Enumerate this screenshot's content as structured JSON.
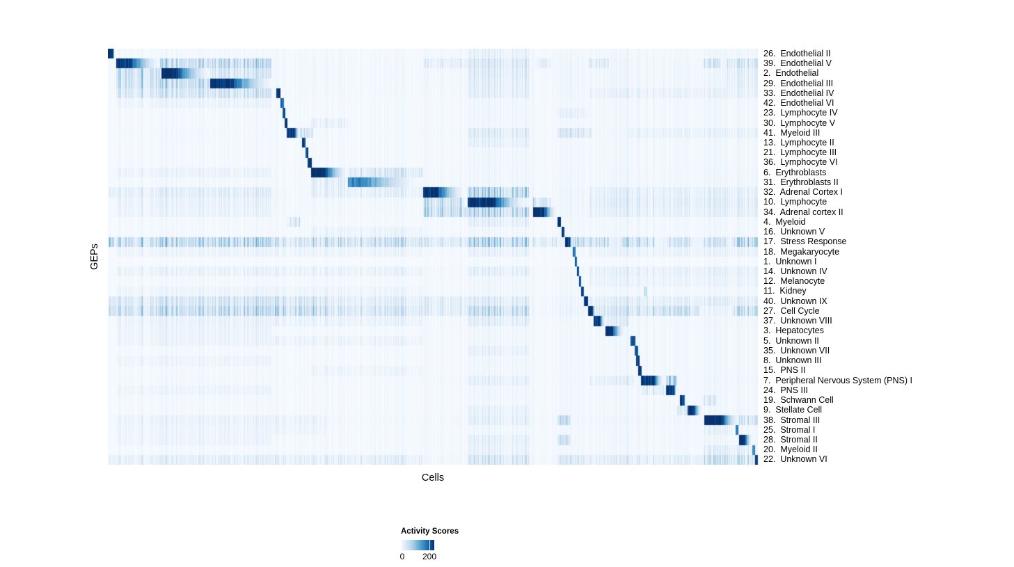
{
  "chart_data": {
    "type": "heatmap",
    "title": "",
    "xlabel": "Cells",
    "ylabel": "GEPs",
    "grid": false,
    "legend_position": "bottom-left-of-center",
    "colorbar": {
      "title": "Activity Scores",
      "tick_labels": [
        "0",
        "200"
      ],
      "tick_positions": [
        0.0,
        0.845
      ],
      "colormap": "Blues",
      "stops": [
        [
          0.0,
          "#f7fbff"
        ],
        [
          0.13,
          "#deebf7"
        ],
        [
          0.26,
          "#c6dbef"
        ],
        [
          0.39,
          "#9ecae1"
        ],
        [
          0.52,
          "#6baed6"
        ],
        [
          0.65,
          "#4292c6"
        ],
        [
          0.78,
          "#2171b5"
        ],
        [
          0.9,
          "#08519c"
        ],
        [
          1.0,
          "#08306b"
        ]
      ]
    },
    "value_scale": {
      "intensity_0": 0,
      "intensity_1": 200,
      "unit": "activity score"
    },
    "background_bands": [
      [
        0.0,
        0.014,
        0.02
      ],
      [
        0.014,
        0.155,
        0.035
      ],
      [
        0.155,
        0.257,
        0.03
      ],
      [
        0.257,
        0.311,
        0.025
      ],
      [
        0.311,
        0.369,
        0.03
      ],
      [
        0.369,
        0.4845,
        0.025
      ],
      [
        0.4845,
        0.553,
        0.03
      ],
      [
        0.553,
        0.647,
        0.045
      ],
      [
        0.647,
        0.69,
        0.03
      ],
      [
        0.69,
        0.74,
        0.035
      ],
      [
        0.74,
        0.84,
        0.04
      ],
      [
        0.84,
        0.915,
        0.035
      ],
      [
        0.915,
        1.0,
        0.045
      ]
    ],
    "rows": [
      {
        "label": "26.  Endothelial II",
        "bg": 1.0,
        "main": [
          0.0,
          0.0096,
          1.0,
          0.8
        ],
        "extras": [
          [
            0.553,
            0.647,
            0.05
          ]
        ]
      },
      {
        "label": "39.  Endothelial V",
        "bg": 1.2,
        "main": [
          0.0128,
          0.0802,
          1.0,
          0.3
        ],
        "extras": [
          [
            0.0802,
            0.2513,
            0.28
          ],
          [
            0.4845,
            0.553,
            0.08
          ],
          [
            0.553,
            0.647,
            0.12
          ],
          [
            0.6578,
            0.6813,
            0.15
          ],
          [
            0.738,
            0.7701,
            0.12
          ],
          [
            0.9144,
            0.9412,
            0.15
          ],
          [
            0.9518,
            1.0,
            0.17
          ]
        ]
      },
      {
        "label": "2.  Endothelial",
        "bg": 1.2,
        "main": [
          0.0824,
          0.1572,
          1.0,
          0.28
        ],
        "extras": [
          [
            0.0128,
            0.0802,
            0.3
          ],
          [
            0.1572,
            0.2513,
            0.17
          ],
          [
            0.553,
            0.647,
            0.09
          ],
          [
            0.9518,
            1.0,
            0.08
          ]
        ]
      },
      {
        "label": "29.  Endothelial III",
        "bg": 1.2,
        "main": [
          0.1572,
          0.2545,
          1.0,
          0.3
        ],
        "extras": [
          [
            0.0128,
            0.1572,
            0.28
          ],
          [
            0.553,
            0.647,
            0.07
          ],
          [
            0.9518,
            1.0,
            0.07
          ]
        ]
      },
      {
        "label": "33.  Endothelial IV",
        "bg": 1.1,
        "main": [
          0.2588,
          0.2652,
          1.0,
          1.0
        ],
        "extras": [
          [
            0.0128,
            0.2513,
            0.2
          ],
          [
            0.553,
            0.647,
            0.07
          ],
          [
            0.74,
            1.0,
            0.05
          ]
        ]
      },
      {
        "label": "42.  Endothelial VI",
        "bg": 0.9,
        "main": [
          0.2652,
          0.2701,
          0.85,
          1.0
        ],
        "extras": [
          [
            0.0128,
            0.2513,
            0.05
          ]
        ]
      },
      {
        "label": "23.  Lymphocyte IV",
        "bg": 0.9,
        "main": [
          0.2684,
          0.2727,
          0.95,
          1.0
        ],
        "extras": [
          [
            0.69,
            0.74,
            0.05
          ]
        ]
      },
      {
        "label": "30.  Lymphocyte V",
        "bg": 0.9,
        "main": [
          0.2717,
          0.2759,
          1.0,
          1.0
        ],
        "extras": [
          [
            0.3123,
            0.369,
            0.07
          ]
        ]
      },
      {
        "label": "41.  Myeloid III",
        "bg": 1.0,
        "main": [
          0.2749,
          0.2952,
          1.0,
          0.55
        ],
        "extras": [
          [
            0.2952,
            0.3155,
            0.22
          ],
          [
            0.553,
            0.647,
            0.1
          ],
          [
            0.69,
            0.7433,
            0.13
          ],
          [
            0.8,
            1.0,
            0.05
          ]
        ]
      },
      {
        "label": "13.  Lymphocyte II",
        "bg": 0.9,
        "main": [
          0.2984,
          0.3032,
          0.95,
          1.0
        ],
        "extras": [
          [
            0.553,
            0.647,
            0.06
          ]
        ]
      },
      {
        "label": "21.  Lymphocyte III",
        "bg": 0.9,
        "main": [
          0.3037,
          0.308,
          0.9,
          1.0
        ],
        "extras": []
      },
      {
        "label": "36.  Lymphocyte VI",
        "bg": 0.9,
        "main": [
          0.307,
          0.3134,
          1.0,
          0.9
        ],
        "extras": []
      },
      {
        "label": "6.  Erythroblasts",
        "bg": 1.0,
        "main": [
          0.3123,
          0.3701,
          1.0,
          0.33
        ],
        "extras": [
          [
            0.3701,
            0.4845,
            0.16
          ],
          [
            0.0128,
            0.2513,
            0.05
          ]
        ]
      },
      {
        "label": "31.  Erythroblasts II",
        "bg": 1.0,
        "main": [
          0.369,
          0.4824,
          0.68,
          0.22
        ],
        "extras": [
          [
            0.3123,
            0.369,
            0.1
          ]
        ]
      },
      {
        "label": "32.  Adrenal Cortex I",
        "bg": 1.3,
        "main": [
          0.4845,
          0.5476,
          1.0,
          0.33
        ],
        "extras": [
          [
            0.553,
            0.647,
            0.28
          ],
          [
            0.0,
            0.2513,
            0.1
          ],
          [
            0.3123,
            0.4845,
            0.08
          ],
          [
            0.74,
            1.0,
            0.06
          ]
        ]
      },
      {
        "label": "10.  Lymphocyte",
        "bg": 1.3,
        "main": [
          0.553,
          0.6428,
          1.0,
          0.42
        ],
        "extras": [
          [
            0.4845,
            0.5476,
            0.22
          ],
          [
            0.6535,
            0.6813,
            0.25
          ],
          [
            0.0128,
            0.2513,
            0.06
          ],
          [
            0.74,
            1.0,
            0.08
          ]
        ]
      },
      {
        "label": "34.  Adrenal cortex II",
        "bg": 1.2,
        "main": [
          0.6535,
          0.6898,
          1.0,
          0.45
        ],
        "extras": [
          [
            0.4845,
            0.647,
            0.26
          ],
          [
            0.0128,
            0.2513,
            0.05
          ],
          [
            0.74,
            1.0,
            0.06
          ]
        ]
      },
      {
        "label": "4.  Myeloid",
        "bg": 0.9,
        "main": [
          0.6909,
          0.6968,
          0.95,
          1.0
        ],
        "extras": [
          [
            0.2749,
            0.2952,
            0.2
          ],
          [
            0.553,
            0.647,
            0.07
          ]
        ]
      },
      {
        "label": "16.  Unknown V",
        "bg": 0.9,
        "main": [
          0.6979,
          0.7021,
          0.9,
          1.0
        ],
        "extras": [
          [
            0.3123,
            0.4845,
            0.05
          ]
        ]
      },
      {
        "label": "17.  Stress Response",
        "bg": 2.2,
        "main": [
          0.7027,
          0.7134,
          0.95,
          0.7
        ],
        "extras": [
          [
            0.0,
            0.0096,
            0.45
          ],
          [
            0.0128,
            0.2513,
            0.28
          ],
          [
            0.2513,
            0.3112,
            0.16
          ],
          [
            0.3123,
            0.4845,
            0.2
          ],
          [
            0.4845,
            0.553,
            0.1
          ],
          [
            0.553,
            0.647,
            0.24
          ],
          [
            0.6535,
            0.6898,
            0.12
          ],
          [
            0.7134,
            0.77,
            0.2
          ],
          [
            0.79,
            0.84,
            0.16
          ],
          [
            0.86,
            0.9,
            0.14
          ],
          [
            0.9144,
            0.95,
            0.12
          ],
          [
            0.96,
            1.0,
            0.26
          ]
        ]
      },
      {
        "label": "18.  Megakaryocyte",
        "bg": 0.8,
        "main": [
          0.7144,
          0.7187,
          0.8,
          1.0
        ],
        "extras": [
          [
            0.0128,
            0.4845,
            0.05
          ],
          [
            0.553,
            0.647,
            0.06
          ],
          [
            0.74,
            1.0,
            0.05
          ]
        ]
      },
      {
        "label": "1.  Unknown I",
        "bg": 0.5,
        "main": [
          0.7182,
          0.7209,
          0.85,
          1.0
        ],
        "extras": []
      },
      {
        "label": "14.  Unknown IV",
        "bg": 1.0,
        "main": [
          0.7209,
          0.7241,
          0.9,
          1.0
        ],
        "extras": [
          [
            0.0128,
            0.4845,
            0.06
          ],
          [
            0.553,
            0.647,
            0.07
          ],
          [
            0.74,
            1.0,
            0.06
          ]
        ]
      },
      {
        "label": "12.  Melanocyte",
        "bg": 0.9,
        "main": [
          0.7241,
          0.7278,
          0.9,
          1.0
        ],
        "extras": [
          [
            0.74,
            1.0,
            0.04
          ]
        ]
      },
      {
        "label": "11.  Kidney",
        "bg": 0.9,
        "main": [
          0.7278,
          0.7316,
          0.9,
          1.0
        ],
        "extras": [
          [
            0.8235,
            0.8278,
            0.32
          ],
          [
            0.0128,
            0.4845,
            0.04
          ]
        ]
      },
      {
        "label": "40.  Unknown IX",
        "bg": 1.4,
        "main": [
          0.7316,
          0.738,
          0.95,
          0.9
        ],
        "extras": [
          [
            0.0,
            0.335,
            0.18
          ],
          [
            0.335,
            0.4845,
            0.1
          ],
          [
            0.4845,
            0.647,
            0.09
          ],
          [
            0.74,
            1.0,
            0.07
          ]
        ]
      },
      {
        "label": "27.  Cell Cycle",
        "bg": 1.6,
        "main": [
          0.738,
          0.7497,
          1.0,
          0.6
        ],
        "extras": [
          [
            0.0,
            0.335,
            0.26
          ],
          [
            0.335,
            0.4845,
            0.16
          ],
          [
            0.4845,
            0.553,
            0.09
          ],
          [
            0.553,
            0.647,
            0.2
          ],
          [
            0.7497,
            0.83,
            0.13
          ],
          [
            0.83,
            0.91,
            0.2
          ],
          [
            0.96,
            1.0,
            0.22
          ]
        ]
      },
      {
        "label": "37.  Unknown VIII",
        "bg": 1.0,
        "main": [
          0.7465,
          0.7647,
          1.0,
          0.5
        ],
        "extras": [
          [
            0.0128,
            0.4845,
            0.06
          ],
          [
            0.553,
            0.647,
            0.08
          ],
          [
            0.7647,
            0.8,
            0.09
          ]
        ]
      },
      {
        "label": "3.  Hepatocytes",
        "bg": 0.9,
        "main": [
          0.7647,
          0.7947,
          1.0,
          0.33
        ],
        "extras": [
          [
            0.0128,
            0.2513,
            0.05
          ]
        ]
      },
      {
        "label": "5.  Unknown II",
        "bg": 0.9,
        "main": [
          0.8032,
          0.8107,
          0.9,
          0.9
        ],
        "extras": [
          [
            0.0128,
            0.4845,
            0.05
          ]
        ]
      },
      {
        "label": "35.  Unknown VII",
        "bg": 0.9,
        "main": [
          0.8096,
          0.815,
          0.85,
          1.0
        ],
        "extras": [
          [
            0.553,
            0.647,
            0.05
          ]
        ]
      },
      {
        "label": "8.  Unknown III",
        "bg": 0.9,
        "main": [
          0.8123,
          0.8171,
          0.9,
          1.0
        ],
        "extras": [
          [
            0.0128,
            0.2513,
            0.04
          ]
        ]
      },
      {
        "label": "15.  PNS II",
        "bg": 0.9,
        "main": [
          0.815,
          0.8203,
          0.95,
          1.0
        ],
        "extras": [
          [
            0.3123,
            0.4845,
            0.04
          ]
        ]
      },
      {
        "label": "7.  Peripheral Nervous System (PNS) I",
        "bg": 1.0,
        "main": [
          0.8193,
          0.8546,
          1.0,
          0.55
        ],
        "extras": [
          [
            0.8578,
            0.8749,
            0.42
          ],
          [
            0.553,
            0.647,
            0.06
          ],
          [
            0.74,
            0.81,
            0.07
          ]
        ]
      },
      {
        "label": "24.  PNS III",
        "bg": 0.9,
        "main": [
          0.8578,
          0.8749,
          1.0,
          0.72
        ],
        "extras": [
          [
            0.8193,
            0.8546,
            0.12
          ],
          [
            0.0128,
            0.2513,
            0.04
          ]
        ]
      },
      {
        "label": "19.  Schwann Cell",
        "bg": 0.9,
        "main": [
          0.8791,
          0.8877,
          0.95,
          0.85
        ],
        "extras": [
          [
            0.9144,
            0.935,
            0.12
          ]
        ]
      },
      {
        "label": "9.  Stellate Cell",
        "bg": 0.9,
        "main": [
          0.8909,
          0.9134,
          1.0,
          0.45
        ],
        "extras": [
          [
            0.8749,
            0.8909,
            0.12
          ],
          [
            0.553,
            0.647,
            0.05
          ]
        ]
      },
      {
        "label": "38.  Stromal III",
        "bg": 1.2,
        "main": [
          0.9166,
          0.9701,
          1.0,
          0.5
        ],
        "extras": [
          [
            0.9701,
            1.0,
            0.18
          ],
          [
            0.69,
            0.71,
            0.22
          ],
          [
            0.553,
            0.647,
            0.06
          ],
          [
            0.0128,
            0.335,
            0.05
          ]
        ]
      },
      {
        "label": "25.  Stromal I",
        "bg": 0.9,
        "main": [
          0.9647,
          0.969,
          0.7,
          1.0
        ],
        "extras": [
          [
            0.9166,
            0.96,
            0.06
          ],
          [
            0.0128,
            0.335,
            0.04
          ]
        ]
      },
      {
        "label": "28.  Stromal II",
        "bg": 1.0,
        "main": [
          0.9701,
          0.9904,
          1.0,
          0.45
        ],
        "extras": [
          [
            0.69,
            0.71,
            0.18
          ],
          [
            0.553,
            0.647,
            0.06
          ],
          [
            0.0128,
            0.2513,
            0.04
          ]
        ]
      },
      {
        "label": "20.  Myeloid II",
        "bg": 0.9,
        "main": [
          0.9914,
          0.9957,
          0.65,
          1.0
        ],
        "extras": [
          [
            0.9144,
            0.99,
            0.09
          ],
          [
            0.553,
            0.647,
            0.05
          ]
        ]
      },
      {
        "label": "22.  Unknown VI",
        "bg": 1.3,
        "main": [
          0.9957,
          1.0,
          1.0,
          1.0
        ],
        "extras": [
          [
            0.0,
            0.4845,
            0.09
          ],
          [
            0.553,
            0.647,
            0.14
          ],
          [
            0.69,
            0.74,
            0.11
          ],
          [
            0.74,
            0.9144,
            0.08
          ],
          [
            0.9144,
            0.995,
            0.2
          ]
        ]
      }
    ]
  }
}
